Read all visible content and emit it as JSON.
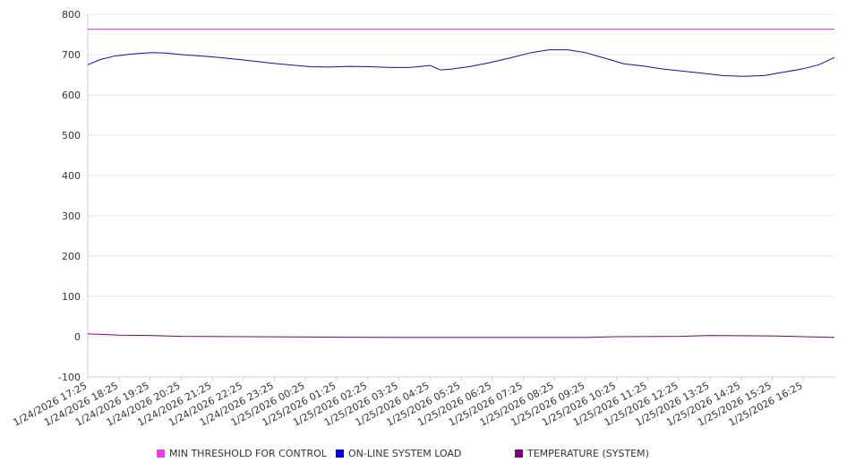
{
  "chart_data": {
    "type": "line",
    "title": "",
    "xlabel": "",
    "ylabel": "",
    "ylim": [
      -100,
      800
    ],
    "y_ticks": [
      800,
      700,
      600,
      500,
      400,
      300,
      200,
      100,
      0,
      -100
    ],
    "grid": "horizontal",
    "legend_position": "bottom",
    "x_start": "1/24/2026 17:25",
    "x_end": "1/25/2026 17:25",
    "x_tick_labels": [
      "1/24/2026 17:25",
      "1/24/2026 18:25",
      "1/24/2026 19:25",
      "1/24/2026 20:25",
      "1/24/2026 21:25",
      "1/24/2026 22:25",
      "1/24/2026 23:25",
      "1/25/2026 00:25",
      "1/25/2026 01:25",
      "1/25/2026 02:25",
      "1/25/2026 03:25",
      "1/25/2026 04:25",
      "1/25/2026 05:25",
      "1/25/2026 06:25",
      "1/25/2026 07:25",
      "1/25/2026 08:25",
      "1/25/2026 09:25",
      "1/25/2026 10:25",
      "1/25/2026 11:25",
      "1/25/2026 12:25",
      "1/25/2026 13:25",
      "1/25/2026 14:25",
      "1/25/2026 15:25",
      "1/25/2026 16:25"
    ],
    "series": [
      {
        "name": "MIN THRESHOLD FOR CONTROL",
        "color": "#cc33cc",
        "x": [
          "1/24/2026 17:25",
          "1/25/2026 17:25"
        ],
        "y": [
          763,
          763
        ]
      },
      {
        "name": "ON-LINE SYSTEM LOAD",
        "color": "#1010a0",
        "x": [
          "1/24/2026 17:25",
          "1/24/2026 17:50",
          "1/24/2026 18:15",
          "1/24/2026 18:40",
          "1/24/2026 19:05",
          "1/24/2026 19:30",
          "1/24/2026 19:55",
          "1/24/2026 20:25",
          "1/24/2026 21:00",
          "1/24/2026 21:40",
          "1/24/2026 22:15",
          "1/24/2026 22:50",
          "1/24/2026 23:25",
          "1/25/2026 00:00",
          "1/25/2026 00:35",
          "1/25/2026 01:10",
          "1/25/2026 01:50",
          "1/25/2026 02:30",
          "1/25/2026 03:10",
          "1/25/2026 03:45",
          "1/25/2026 04:25",
          "1/25/2026 04:45",
          "1/25/2026 05:05",
          "1/25/2026 05:40",
          "1/25/2026 06:20",
          "1/25/2026 07:00",
          "1/25/2026 07:40",
          "1/25/2026 08:15",
          "1/25/2026 08:50",
          "1/25/2026 09:25",
          "1/25/2026 10:05",
          "1/25/2026 10:40",
          "1/25/2026 11:15",
          "1/25/2026 11:50",
          "1/25/2026 12:25",
          "1/25/2026 13:10",
          "1/25/2026 13:50",
          "1/25/2026 14:30",
          "1/25/2026 15:10",
          "1/25/2026 15:45",
          "1/25/2026 16:25",
          "1/25/2026 16:55",
          "1/25/2026 17:25"
        ],
        "y": [
          675,
          688,
          696,
          700,
          703,
          705,
          704,
          700,
          697,
          693,
          688,
          683,
          678,
          674,
          670,
          669,
          671,
          670,
          668,
          668,
          673,
          662,
          664,
          670,
          680,
          692,
          705,
          712,
          712,
          705,
          690,
          677,
          672,
          665,
          660,
          654,
          648,
          646,
          648,
          656,
          665,
          675,
          693
        ]
      },
      {
        "name": "TEMPERATURE (SYSTEM)",
        "color": "#800080",
        "x": [
          "1/24/2026 17:25",
          "1/24/2026 18:25",
          "1/24/2026 19:25",
          "1/24/2026 20:25",
          "1/25/2026 00:25",
          "1/25/2026 03:25",
          "1/25/2026 06:25",
          "1/25/2026 09:25",
          "1/25/2026 10:25",
          "1/25/2026 12:25",
          "1/25/2026 13:25",
          "1/25/2026 15:25",
          "1/25/2026 16:25",
          "1/25/2026 17:25"
        ],
        "y": [
          7,
          4,
          3,
          1,
          -1,
          -2,
          -2,
          -2,
          0,
          1,
          3,
          2,
          0,
          -2
        ]
      }
    ]
  }
}
